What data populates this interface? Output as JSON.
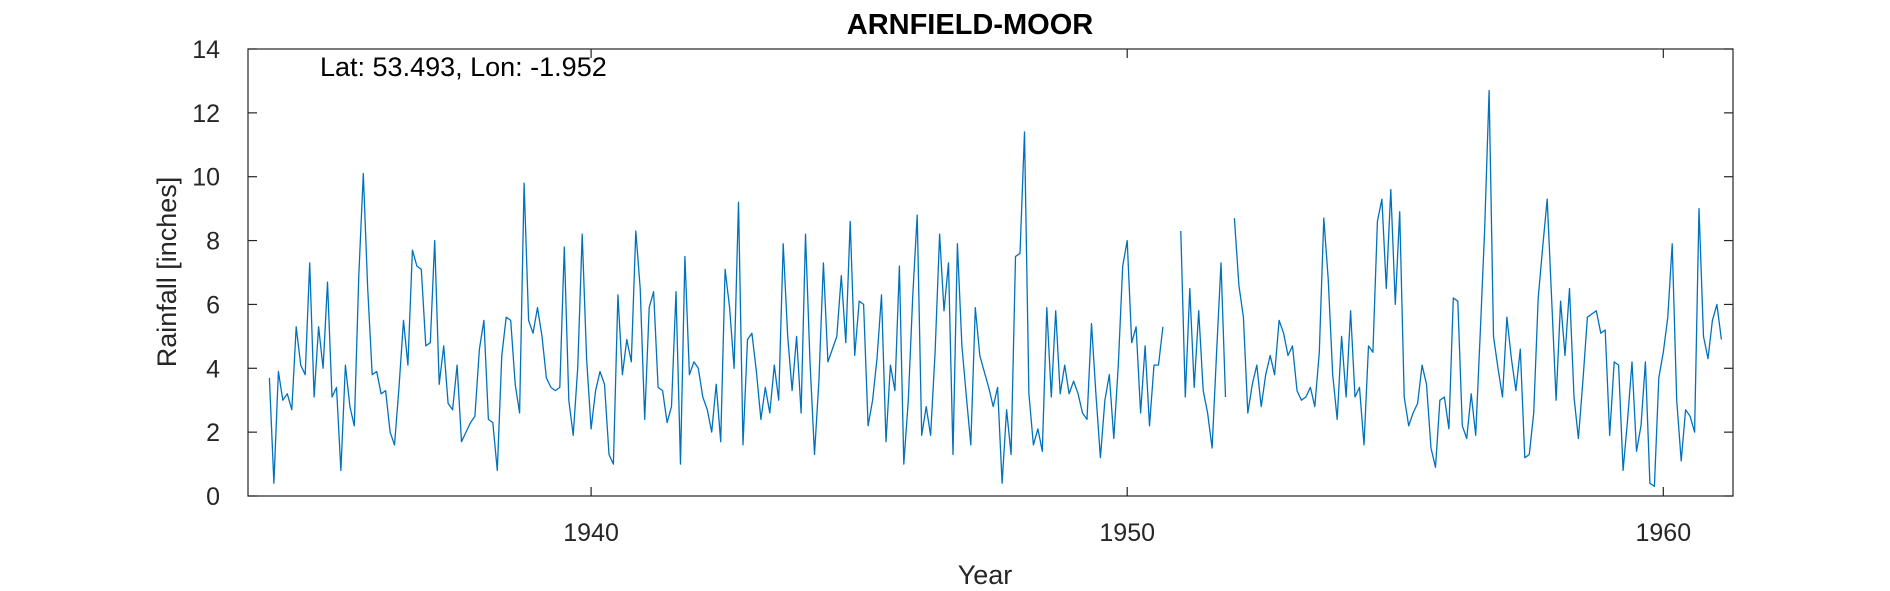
{
  "chart_data": {
    "type": "line",
    "title": "ARNFIELD-MOOR",
    "annotation": "Lat: 53.493, Lon: -1.952",
    "xlabel": "Year",
    "ylabel": "Rainfall [inches]",
    "xlim": [
      1933.6,
      1961.3
    ],
    "ylim": [
      0,
      14
    ],
    "xticks": [
      1940,
      1950,
      1960
    ],
    "yticks": [
      0,
      2,
      4,
      6,
      8,
      10,
      12,
      14
    ],
    "grid": false,
    "line_color": "#0072BD",
    "series": [
      {
        "start_year": 1934,
        "start_month": 1,
        "interval": "monthly",
        "values": [
          3.7,
          0.4,
          3.9,
          3.0,
          3.2,
          2.7,
          5.3,
          4.1,
          3.8,
          7.3,
          3.1,
          5.3,
          4.0,
          6.7,
          3.1,
          3.4,
          0.8,
          4.1,
          2.8,
          2.2,
          6.9,
          10.1,
          6.5,
          3.8,
          3.9,
          3.2,
          3.3,
          2.0,
          1.6,
          3.4,
          5.5,
          4.1,
          7.7,
          7.2,
          7.1,
          4.7,
          4.8,
          8.0,
          3.5,
          4.7,
          2.9,
          2.7,
          4.1,
          1.7,
          2.0,
          2.3,
          2.5,
          4.6,
          5.5,
          2.4,
          2.3,
          0.8,
          4.4,
          5.6,
          5.5,
          3.5,
          2.6,
          9.8,
          5.5,
          5.1,
          5.9,
          5.0,
          3.7,
          3.4,
          3.3,
          3.4,
          7.8,
          3.0,
          1.9,
          4.0,
          8.2,
          4.3,
          2.1,
          3.3,
          3.9,
          3.5,
          1.3,
          1.0,
          6.3,
          3.8,
          4.9,
          4.2,
          8.3,
          6.5,
          2.4,
          5.9,
          6.4,
          3.4,
          3.3,
          2.3,
          2.8,
          6.4,
          1.0,
          7.5,
          3.8,
          4.2,
          4.0,
          3.1,
          2.7,
          2.0,
          3.5,
          1.7,
          7.1,
          5.9,
          4.0,
          9.2,
          1.6,
          4.9,
          5.1,
          3.9,
          2.4,
          3.4,
          2.6,
          4.1,
          3.0,
          7.9,
          5.0,
          3.3,
          5.0,
          2.6,
          8.2,
          4.2,
          1.3,
          3.6,
          7.3,
          4.2,
          4.6,
          5.0,
          6.9,
          4.8,
          8.6,
          4.4,
          6.1,
          6.0,
          2.2,
          3.0,
          4.3,
          6.3,
          1.7,
          4.1,
          3.3,
          7.2,
          1.0,
          3.0,
          6.3,
          8.8,
          1.9,
          2.8,
          1.9,
          4.5,
          8.2,
          5.8,
          7.3,
          1.3,
          7.9,
          4.7,
          3.1,
          1.6,
          5.9,
          4.4,
          3.9,
          3.4,
          2.8,
          3.4,
          0.4,
          2.7,
          1.3,
          7.5,
          7.6,
          11.4,
          3.2,
          1.6,
          2.1,
          1.4,
          5.9,
          3.1,
          5.8,
          3.2,
          4.1,
          3.2,
          3.6,
          3.2,
          2.6,
          2.4,
          5.4,
          3.2,
          1.2,
          3.0,
          3.8,
          1.8,
          4.1,
          7.2,
          8.0,
          4.8,
          5.3,
          2.6,
          4.7,
          2.2,
          4.1,
          4.1,
          5.3,
          null,
          null,
          null,
          8.3,
          3.1,
          6.5,
          3.4,
          5.8,
          3.3,
          2.6,
          1.5,
          4.5,
          7.3,
          3.1,
          null,
          8.7,
          6.6,
          5.6,
          2.6,
          3.5,
          4.1,
          2.8,
          3.8,
          4.4,
          3.8,
          5.5,
          5.1,
          4.4,
          4.7,
          3.3,
          3.0,
          3.1,
          3.4,
          2.8,
          4.5,
          8.7,
          6.8,
          3.8,
          2.4,
          5.0,
          3.1,
          5.8,
          3.1,
          3.4,
          1.6,
          4.7,
          4.5,
          8.6,
          9.3,
          6.5,
          9.6,
          6.0,
          8.9,
          3.1,
          2.2,
          2.6,
          2.9,
          4.1,
          3.5,
          1.5,
          0.9,
          3.0,
          3.1,
          2.1,
          6.2,
          6.1,
          2.2,
          1.8,
          3.2,
          1.9,
          5.0,
          8.3,
          12.7,
          5.0,
          4.0,
          3.1,
          5.6,
          4.3,
          3.3,
          4.6,
          1.2,
          1.3,
          2.6,
          6.2,
          7.8,
          9.3,
          6.2,
          3.0,
          6.1,
          4.4,
          6.5,
          3.1,
          1.8,
          3.6,
          5.6,
          5.7,
          5.8,
          5.1,
          5.2,
          1.9,
          4.2,
          4.1,
          0.8,
          2.4,
          4.2,
          1.4,
          2.2,
          4.2,
          0.4,
          0.3,
          3.7,
          4.5,
          5.6,
          7.9,
          3.0,
          1.1,
          2.7,
          2.5,
          2.0,
          9.0,
          5.0,
          4.3,
          5.5,
          6.0,
          4.9
        ]
      }
    ]
  }
}
